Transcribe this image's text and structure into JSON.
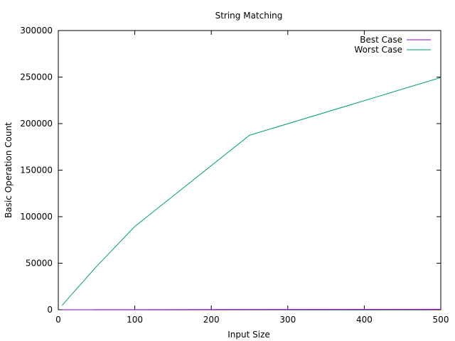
{
  "chart_data": {
    "type": "line",
    "title": "String Matching",
    "xlabel": "Input Size",
    "ylabel": "Basic Operation Count",
    "xlim": [
      0,
      500
    ],
    "ylim": [
      0,
      300000
    ],
    "x_ticks": [
      0,
      100,
      200,
      300,
      400,
      500
    ],
    "y_ticks": [
      0,
      50000,
      100000,
      150000,
      200000,
      250000,
      300000
    ],
    "grid": false,
    "legend_position": "top-right",
    "series": [
      {
        "name": "Best Case",
        "color": "#9400d3",
        "points": [
          [
            5,
            5
          ],
          [
            10,
            10
          ],
          [
            50,
            50
          ],
          [
            100,
            100
          ],
          [
            250,
            250
          ],
          [
            500,
            500
          ]
        ]
      },
      {
        "name": "Worst Case",
        "color": "#009e73",
        "points": [
          [
            5,
            4500
          ],
          [
            10,
            9500
          ],
          [
            50,
            46500
          ],
          [
            100,
            89500
          ],
          [
            250,
            187500
          ],
          [
            500,
            249500
          ]
        ]
      }
    ]
  }
}
